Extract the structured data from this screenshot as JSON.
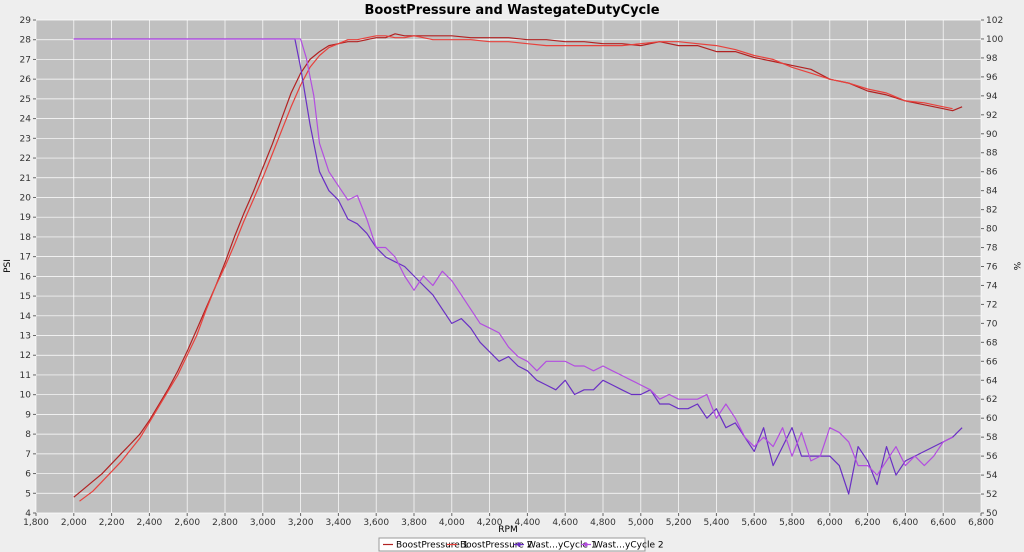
{
  "chart_data": {
    "type": "line",
    "title": "BoostPressure and WastegateDutyCycle",
    "xlabel": "RPM",
    "ylabel": "PSI",
    "y2label": "%",
    "xlim": [
      1800,
      6800
    ],
    "ylim": [
      4,
      29
    ],
    "y2lim": [
      50,
      102
    ],
    "grid": true,
    "legend_position": "bottom",
    "x_ticks": [
      1800,
      2000,
      2200,
      2400,
      2600,
      2800,
      3000,
      3200,
      3400,
      3600,
      3800,
      4000,
      4200,
      4400,
      4600,
      4800,
      5000,
      5200,
      5400,
      5600,
      5800,
      6000,
      6200,
      6400,
      6600,
      6800
    ],
    "x_tick_labels": [
      "1,800",
      "2,000",
      "2,200",
      "2,400",
      "2,600",
      "2,800",
      "3,000",
      "3,200",
      "3,400",
      "3,600",
      "3,800",
      "4,000",
      "4,200",
      "4,400",
      "4,600",
      "4,800",
      "5,000",
      "5,200",
      "5,400",
      "5,600",
      "5,800",
      "6,000",
      "6,200",
      "6,400",
      "6,600",
      "6,800"
    ],
    "y_ticks": [
      4,
      5,
      6,
      7,
      8,
      9,
      10,
      11,
      12,
      13,
      14,
      15,
      16,
      17,
      18,
      19,
      20,
      21,
      22,
      23,
      24,
      25,
      26,
      27,
      28,
      29
    ],
    "y2_ticks": [
      50,
      52,
      54,
      56,
      58,
      60,
      62,
      64,
      66,
      68,
      70,
      72,
      74,
      76,
      78,
      80,
      82,
      84,
      86,
      88,
      90,
      92,
      94,
      96,
      98,
      100,
      102
    ],
    "series": [
      {
        "name": "BoostPressure 1",
        "axis": "left",
        "color": "#b22222",
        "points": [
          [
            2000,
            4.8
          ],
          [
            2050,
            5.2
          ],
          [
            2100,
            5.6
          ],
          [
            2150,
            6.0
          ],
          [
            2200,
            6.5
          ],
          [
            2250,
            7.0
          ],
          [
            2300,
            7.5
          ],
          [
            2350,
            8.0
          ],
          [
            2400,
            8.7
          ],
          [
            2450,
            9.5
          ],
          [
            2500,
            10.3
          ],
          [
            2550,
            11.2
          ],
          [
            2600,
            12.2
          ],
          [
            2650,
            13.3
          ],
          [
            2700,
            14.4
          ],
          [
            2750,
            15.5
          ],
          [
            2800,
            16.7
          ],
          [
            2850,
            18.0
          ],
          [
            2900,
            19.2
          ],
          [
            2950,
            20.3
          ],
          [
            3000,
            21.5
          ],
          [
            3050,
            22.7
          ],
          [
            3100,
            24.0
          ],
          [
            3150,
            25.3
          ],
          [
            3200,
            26.3
          ],
          [
            3250,
            27.0
          ],
          [
            3300,
            27.4
          ],
          [
            3350,
            27.7
          ],
          [
            3400,
            27.8
          ],
          [
            3450,
            27.9
          ],
          [
            3500,
            27.9
          ],
          [
            3550,
            28.0
          ],
          [
            3600,
            28.1
          ],
          [
            3650,
            28.1
          ],
          [
            3700,
            28.3
          ],
          [
            3750,
            28.2
          ],
          [
            3800,
            28.2
          ],
          [
            3850,
            28.2
          ],
          [
            3900,
            28.2
          ],
          [
            3950,
            28.2
          ],
          [
            4000,
            28.2
          ],
          [
            4100,
            28.1
          ],
          [
            4200,
            28.1
          ],
          [
            4300,
            28.1
          ],
          [
            4400,
            28.0
          ],
          [
            4500,
            28.0
          ],
          [
            4600,
            27.9
          ],
          [
            4700,
            27.9
          ],
          [
            4800,
            27.8
          ],
          [
            4900,
            27.8
          ],
          [
            5000,
            27.7
          ],
          [
            5100,
            27.9
          ],
          [
            5200,
            27.7
          ],
          [
            5300,
            27.7
          ],
          [
            5400,
            27.4
          ],
          [
            5500,
            27.4
          ],
          [
            5600,
            27.1
          ],
          [
            5700,
            26.9
          ],
          [
            5800,
            26.7
          ],
          [
            5900,
            26.5
          ],
          [
            6000,
            26.0
          ],
          [
            6100,
            25.8
          ],
          [
            6200,
            25.4
          ],
          [
            6300,
            25.2
          ],
          [
            6400,
            24.9
          ],
          [
            6500,
            24.7
          ],
          [
            6600,
            24.5
          ],
          [
            6650,
            24.4
          ],
          [
            6700,
            24.6
          ]
        ]
      },
      {
        "name": "BoostPressure 2",
        "axis": "left",
        "color": "#e8413c",
        "points": [
          [
            2030,
            4.6
          ],
          [
            2100,
            5.1
          ],
          [
            2150,
            5.6
          ],
          [
            2200,
            6.1
          ],
          [
            2250,
            6.6
          ],
          [
            2300,
            7.2
          ],
          [
            2350,
            7.8
          ],
          [
            2400,
            8.6
          ],
          [
            2450,
            9.4
          ],
          [
            2500,
            10.2
          ],
          [
            2550,
            11.0
          ],
          [
            2600,
            12.0
          ],
          [
            2650,
            13.0
          ],
          [
            2700,
            14.3
          ],
          [
            2750,
            15.5
          ],
          [
            2800,
            16.5
          ],
          [
            2850,
            17.6
          ],
          [
            2900,
            18.8
          ],
          [
            2950,
            19.9
          ],
          [
            3000,
            21.0
          ],
          [
            3050,
            22.2
          ],
          [
            3100,
            23.4
          ],
          [
            3150,
            24.6
          ],
          [
            3200,
            25.7
          ],
          [
            3250,
            26.6
          ],
          [
            3300,
            27.2
          ],
          [
            3350,
            27.6
          ],
          [
            3400,
            27.8
          ],
          [
            3450,
            28.0
          ],
          [
            3500,
            28.0
          ],
          [
            3550,
            28.1
          ],
          [
            3600,
            28.2
          ],
          [
            3650,
            28.2
          ],
          [
            3700,
            28.1
          ],
          [
            3750,
            28.1
          ],
          [
            3800,
            28.2
          ],
          [
            3850,
            28.1
          ],
          [
            3900,
            28.0
          ],
          [
            3950,
            28.0
          ],
          [
            4000,
            28.0
          ],
          [
            4100,
            28.0
          ],
          [
            4200,
            27.9
          ],
          [
            4300,
            27.9
          ],
          [
            4400,
            27.8
          ],
          [
            4500,
            27.7
          ],
          [
            4600,
            27.7
          ],
          [
            4700,
            27.7
          ],
          [
            4800,
            27.7
          ],
          [
            4900,
            27.7
          ],
          [
            5000,
            27.8
          ],
          [
            5100,
            27.9
          ],
          [
            5200,
            27.9
          ],
          [
            5300,
            27.8
          ],
          [
            5400,
            27.7
          ],
          [
            5500,
            27.5
          ],
          [
            5600,
            27.2
          ],
          [
            5700,
            27.0
          ],
          [
            5800,
            26.6
          ],
          [
            5900,
            26.3
          ],
          [
            6000,
            26.0
          ],
          [
            6100,
            25.8
          ],
          [
            6200,
            25.5
          ],
          [
            6300,
            25.3
          ],
          [
            6400,
            24.9
          ],
          [
            6500,
            24.8
          ],
          [
            6600,
            24.6
          ],
          [
            6650,
            24.5
          ]
        ]
      },
      {
        "name": "Wast…yCycle 1",
        "axis": "right",
        "color": "#6a2fc4",
        "points": [
          [
            2000,
            100
          ],
          [
            2200,
            100
          ],
          [
            2400,
            100
          ],
          [
            2600,
            100
          ],
          [
            2800,
            100
          ],
          [
            3000,
            100
          ],
          [
            3100,
            100
          ],
          [
            3170,
            100
          ],
          [
            3200,
            97
          ],
          [
            3250,
            91
          ],
          [
            3300,
            86
          ],
          [
            3350,
            84
          ],
          [
            3400,
            83
          ],
          [
            3450,
            81
          ],
          [
            3500,
            80.5
          ],
          [
            3550,
            79.5
          ],
          [
            3600,
            78
          ],
          [
            3650,
            77
          ],
          [
            3700,
            76.5
          ],
          [
            3750,
            76
          ],
          [
            3800,
            75
          ],
          [
            3850,
            74
          ],
          [
            3900,
            73
          ],
          [
            3950,
            71.5
          ],
          [
            4000,
            70
          ],
          [
            4050,
            70.5
          ],
          [
            4100,
            69.5
          ],
          [
            4150,
            68
          ],
          [
            4200,
            67
          ],
          [
            4250,
            66
          ],
          [
            4300,
            66.5
          ],
          [
            4350,
            65.5
          ],
          [
            4400,
            65
          ],
          [
            4450,
            64
          ],
          [
            4500,
            63.5
          ],
          [
            4550,
            63
          ],
          [
            4600,
            64
          ],
          [
            4650,
            62.5
          ],
          [
            4700,
            63
          ],
          [
            4750,
            63
          ],
          [
            4800,
            64
          ],
          [
            4850,
            63.5
          ],
          [
            4900,
            63
          ],
          [
            4950,
            62.5
          ],
          [
            5000,
            62.5
          ],
          [
            5050,
            63
          ],
          [
            5100,
            61.5
          ],
          [
            5150,
            61.5
          ],
          [
            5200,
            61
          ],
          [
            5250,
            61
          ],
          [
            5300,
            61.5
          ],
          [
            5350,
            60
          ],
          [
            5400,
            61
          ],
          [
            5450,
            59
          ],
          [
            5500,
            59.5
          ],
          [
            5550,
            58
          ],
          [
            5600,
            56.5
          ],
          [
            5650,
            59
          ],
          [
            5700,
            55
          ],
          [
            5750,
            57
          ],
          [
            5800,
            59
          ],
          [
            5850,
            56
          ],
          [
            5900,
            56
          ],
          [
            5950,
            56
          ],
          [
            6000,
            56
          ],
          [
            6050,
            55
          ],
          [
            6100,
            52
          ],
          [
            6150,
            57
          ],
          [
            6200,
            55.5
          ],
          [
            6250,
            53
          ],
          [
            6300,
            57
          ],
          [
            6350,
            54
          ],
          [
            6400,
            55.5
          ],
          [
            6450,
            56
          ],
          [
            6500,
            56.5
          ],
          [
            6550,
            57
          ],
          [
            6600,
            57.5
          ],
          [
            6650,
            58
          ],
          [
            6700,
            59
          ]
        ]
      },
      {
        "name": "Wast…yCycle 2",
        "axis": "right",
        "color": "#b34ee0",
        "points": [
          [
            2000,
            100
          ],
          [
            2200,
            100
          ],
          [
            2400,
            100
          ],
          [
            2600,
            100
          ],
          [
            2800,
            100
          ],
          [
            3000,
            100
          ],
          [
            3200,
            100
          ],
          [
            3230,
            98
          ],
          [
            3270,
            94
          ],
          [
            3300,
            89
          ],
          [
            3350,
            86
          ],
          [
            3400,
            84.5
          ],
          [
            3450,
            83
          ],
          [
            3500,
            83.5
          ],
          [
            3550,
            81
          ],
          [
            3600,
            78
          ],
          [
            3650,
            78
          ],
          [
            3700,
            77
          ],
          [
            3750,
            75
          ],
          [
            3800,
            73.5
          ],
          [
            3850,
            75
          ],
          [
            3900,
            74
          ],
          [
            3950,
            75.5
          ],
          [
            4000,
            74.5
          ],
          [
            4050,
            73
          ],
          [
            4100,
            71.5
          ],
          [
            4150,
            70
          ],
          [
            4200,
            69.5
          ],
          [
            4250,
            69
          ],
          [
            4300,
            67.5
          ],
          [
            4350,
            66.5
          ],
          [
            4400,
            66
          ],
          [
            4450,
            65
          ],
          [
            4500,
            66
          ],
          [
            4550,
            66
          ],
          [
            4600,
            66
          ],
          [
            4650,
            65.5
          ],
          [
            4700,
            65.5
          ],
          [
            4750,
            65
          ],
          [
            4800,
            65.5
          ],
          [
            4850,
            65
          ],
          [
            4900,
            64.5
          ],
          [
            4950,
            64
          ],
          [
            5000,
            63.5
          ],
          [
            5050,
            63
          ],
          [
            5100,
            62
          ],
          [
            5150,
            62.5
          ],
          [
            5200,
            62
          ],
          [
            5250,
            62
          ],
          [
            5300,
            62
          ],
          [
            5350,
            62.5
          ],
          [
            5400,
            60
          ],
          [
            5450,
            61.5
          ],
          [
            5500,
            60
          ],
          [
            5550,
            58
          ],
          [
            5600,
            57
          ],
          [
            5650,
            58
          ],
          [
            5700,
            57
          ],
          [
            5750,
            59
          ],
          [
            5800,
            56
          ],
          [
            5850,
            58.5
          ],
          [
            5900,
            55.5
          ],
          [
            5950,
            56
          ],
          [
            6000,
            59
          ],
          [
            6050,
            58.5
          ],
          [
            6100,
            57.5
          ],
          [
            6150,
            55
          ],
          [
            6200,
            55
          ],
          [
            6250,
            54
          ],
          [
            6300,
            55.5
          ],
          [
            6350,
            57
          ],
          [
            6400,
            55
          ],
          [
            6450,
            56
          ],
          [
            6500,
            55
          ],
          [
            6550,
            56
          ],
          [
            6600,
            57.5
          ],
          [
            6650,
            58
          ]
        ]
      }
    ]
  }
}
